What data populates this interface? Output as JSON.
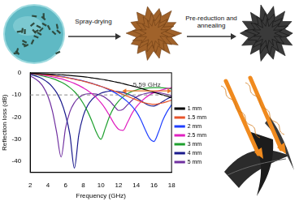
{
  "diagram": {
    "steps": [
      "Spray-drying",
      "Pre-reduction and annealing"
    ]
  },
  "chart_data": {
    "type": "line",
    "x_label": "Frequency (GHz)",
    "y_label": "Reflection loss (dB)",
    "x": [
      2,
      2.5,
      3,
      3.5,
      4,
      4.5,
      5,
      5.5,
      6,
      6.5,
      7,
      7.5,
      8,
      8.5,
      9,
      9.5,
      10,
      10.5,
      11,
      11.5,
      12,
      12.5,
      13,
      13.5,
      14,
      14.5,
      15,
      15.5,
      16,
      16.5,
      17,
      17.5,
      18
    ],
    "series": [
      {
        "name": "1 mm",
        "color": "#000000",
        "values": [
          -0.2,
          -0.3,
          -0.4,
          -0.5,
          -0.6,
          -0.7,
          -0.8,
          -0.9,
          -1.0,
          -1.2,
          -1.4,
          -1.6,
          -1.8,
          -2.0,
          -2.3,
          -2.6,
          -2.9,
          -3.2,
          -3.6,
          -4.0,
          -4.4,
          -4.9,
          -5.4,
          -5.9,
          -6.4,
          -7.0,
          -7.6,
          -8.2,
          -8.8,
          -9.4,
          -10.0,
          -10.6,
          -11.2
        ]
      },
      {
        "name": "1.5 mm",
        "color": "#e8542a",
        "values": [
          -0.3,
          -0.4,
          -0.6,
          -0.8,
          -1.0,
          -1.2,
          -1.5,
          -1.8,
          -2.1,
          -2.5,
          -2.9,
          -3.3,
          -3.8,
          -4.3,
          -4.9,
          -5.5,
          -6.1,
          -6.8,
          -7.5,
          -8.2,
          -9.0,
          -9.8,
          -10.6,
          -11.4,
          -12.2,
          -13.0,
          -13.6,
          -14.0,
          -14.2,
          -14.0,
          -13.6,
          -13.0,
          -12.4
        ]
      },
      {
        "name": "2 mm",
        "color": "#1f3fff",
        "values": [
          -0.3,
          -0.4,
          -0.5,
          -0.7,
          -0.9,
          -1.1,
          -1.4,
          -1.7,
          -2.0,
          -2.4,
          -2.8,
          -3.2,
          -3.7,
          -4.2,
          -4.8,
          -5.4,
          -6.1,
          -6.9,
          -7.8,
          -8.8,
          -10.0,
          -11.4,
          -13.0,
          -15.0,
          -17.5,
          -21.0,
          -25.5,
          -29.5,
          -31.0,
          -27.0,
          -21.5,
          -17.5,
          -14.5
        ]
      },
      {
        "name": "2.5 mm",
        "color": "#e020c0",
        "values": [
          -0.4,
          -0.6,
          -0.8,
          -1.1,
          -1.4,
          -1.8,
          -2.2,
          -2.7,
          -3.3,
          -4.0,
          -4.8,
          -5.7,
          -6.8,
          -8.0,
          -9.5,
          -11.3,
          -13.5,
          -16.2,
          -19.5,
          -23.0,
          -25.5,
          -26.0,
          -22.5,
          -18.5,
          -15.5,
          -13.2,
          -11.4,
          -10.0,
          -9.0,
          -8.2,
          -7.6,
          -7.1,
          -6.7
        ]
      },
      {
        "name": "3 mm",
        "color": "#1fa02f",
        "values": [
          -0.5,
          -0.8,
          -1.1,
          -1.5,
          -2.0,
          -2.6,
          -3.3,
          -4.2,
          -5.3,
          -6.7,
          -8.5,
          -10.8,
          -13.8,
          -17.5,
          -22.0,
          -27.0,
          -30.0,
          -25.0,
          -19.5,
          -15.5,
          -12.8,
          -10.9,
          -9.5,
          -8.5,
          -7.8,
          -7.3,
          -7.0,
          -6.8,
          -6.7,
          -6.7,
          -6.8,
          -7.0,
          -7.3
        ]
      },
      {
        "name": "4 mm",
        "color": "#1a1a8c",
        "values": [
          -0.8,
          -1.3,
          -2.0,
          -3.0,
          -4.4,
          -6.3,
          -9.0,
          -13.0,
          -19.0,
          -28.0,
          -43.0,
          -28.0,
          -19.5,
          -14.8,
          -12.0,
          -10.3,
          -9.2,
          -8.6,
          -8.3,
          -8.3,
          -8.5,
          -8.9,
          -9.5,
          -10.3,
          -11.3,
          -12.5,
          -13.8,
          -14.8,
          -15.0,
          -14.2,
          -13.0,
          -11.8,
          -10.8
        ]
      },
      {
        "name": "5 mm",
        "color": "#7030a0",
        "values": [
          -1.5,
          -2.5,
          -4.0,
          -6.5,
          -10.5,
          -17.0,
          -27.0,
          -38.0,
          -25.0,
          -17.5,
          -13.5,
          -11.2,
          -10.0,
          -9.5,
          -9.4,
          -9.6,
          -10.2,
          -11.2,
          -12.8,
          -15.0,
          -17.0,
          -16.5,
          -14.5,
          -12.5,
          -11.0,
          -10.0,
          -9.4,
          -9.0,
          -8.9,
          -9.0,
          -9.3,
          -9.8,
          -10.4
        ]
      }
    ],
    "xlim": [
      2,
      18
    ],
    "xticks": [
      2,
      4,
      6,
      8,
      10,
      12,
      14,
      16,
      18
    ],
    "ylim": [
      -45,
      0
    ],
    "yticks": [
      -40,
      -30,
      -20,
      -10,
      0
    ],
    "grid": false,
    "legend": "right",
    "annotation": {
      "text": "5.59 GHz",
      "x_from": 12.41,
      "x_to": 18,
      "y": -10
    }
  }
}
